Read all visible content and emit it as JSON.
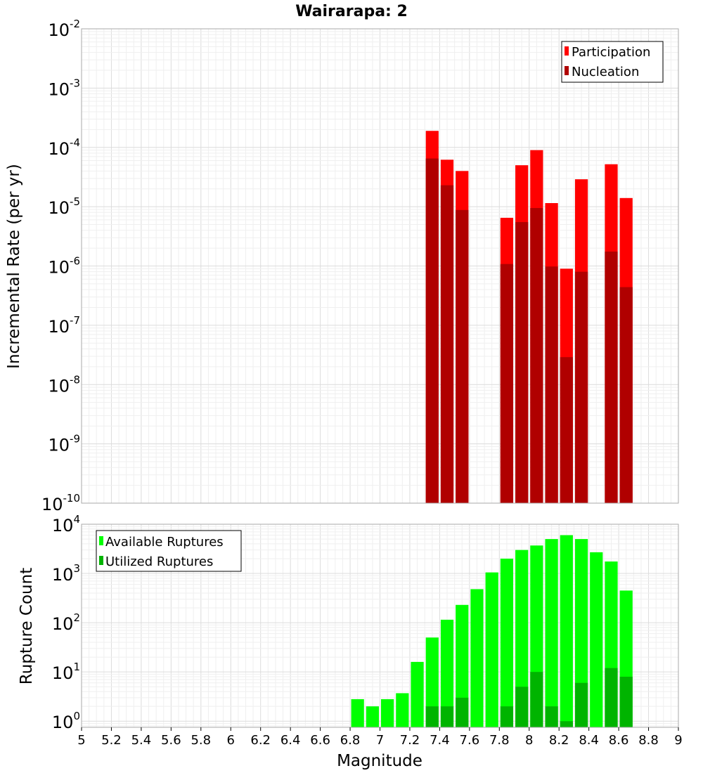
{
  "chart_data": [
    {
      "id": "rates",
      "type": "bar",
      "title": "Wairarapa: 2",
      "xlabel": "Magnitude",
      "ylabel": "Incremental Rate (per yr)",
      "yscale": "log",
      "xlim": [
        5,
        9
      ],
      "ylim": [
        1e-10,
        0.01
      ],
      "ytick_exponents": [
        -10,
        -9,
        -8,
        -7,
        -6,
        -5,
        -4,
        -3,
        -2
      ],
      "bin_width": 0.1,
      "legend": {
        "position": "top-right",
        "entries": [
          "Participation",
          "Nucleation"
        ]
      },
      "series": [
        {
          "name": "Participation",
          "color": "#ff0000",
          "points": [
            [
              7.35,
              0.00019
            ],
            [
              7.45,
              6.2e-05
            ],
            [
              7.55,
              4e-05
            ],
            [
              7.85,
              6.5e-06
            ],
            [
              7.95,
              5e-05
            ],
            [
              8.05,
              9e-05
            ],
            [
              8.15,
              1.15e-05
            ],
            [
              8.25,
              9e-07
            ],
            [
              8.35,
              2.9e-05
            ],
            [
              8.55,
              5.2e-05
            ],
            [
              8.65,
              1.4e-05
            ]
          ]
        },
        {
          "name": "Nucleation",
          "color": "#b00000",
          "points": [
            [
              7.35,
              6.5e-05
            ],
            [
              7.45,
              2.3e-05
            ],
            [
              7.55,
              8.8e-06
            ],
            [
              7.85,
              1.08e-06
            ],
            [
              7.95,
              5.5e-06
            ],
            [
              8.05,
              9.5e-06
            ],
            [
              8.15,
              9.8e-07
            ],
            [
              8.25,
              2.9e-08
            ],
            [
              8.35,
              8e-07
            ],
            [
              8.55,
              1.75e-06
            ],
            [
              8.65,
              4.4e-07
            ]
          ]
        }
      ]
    },
    {
      "id": "counts",
      "type": "bar",
      "xlabel": "Magnitude",
      "ylabel": "Rupture Count",
      "yscale": "log",
      "xlim": [
        5,
        9
      ],
      "ylim": [
        0.75,
        10000
      ],
      "ytick_exponents": [
        0,
        1,
        2,
        3,
        4
      ],
      "xticks": [
        "5",
        "5.2",
        "5.4",
        "5.6",
        "5.8",
        "6",
        "6.2",
        "6.4",
        "6.6",
        "6.8",
        "7",
        "7.2",
        "7.4",
        "7.6",
        "7.8",
        "8",
        "8.2",
        "8.4",
        "8.6",
        "8.8",
        "9"
      ],
      "bin_width": 0.1,
      "legend": {
        "position": "top-left",
        "entries": [
          "Available Ruptures",
          "Utilized Ruptures"
        ]
      },
      "series": [
        {
          "name": "Available Ruptures",
          "color": "#00ff00",
          "points": [
            [
              6.85,
              2.8
            ],
            [
              6.95,
              2.0
            ],
            [
              7.05,
              2.8
            ],
            [
              7.15,
              3.7
            ],
            [
              7.25,
              16
            ],
            [
              7.35,
              50
            ],
            [
              7.45,
              115
            ],
            [
              7.55,
              230
            ],
            [
              7.65,
              480
            ],
            [
              7.75,
              1050
            ],
            [
              7.85,
              2000
            ],
            [
              7.95,
              3000
            ],
            [
              8.05,
              3700
            ],
            [
              8.15,
              5000
            ],
            [
              8.25,
              6000
            ],
            [
              8.35,
              5000
            ],
            [
              8.45,
              2700
            ],
            [
              8.55,
              1750
            ],
            [
              8.65,
              450
            ]
          ]
        },
        {
          "name": "Utilized Ruptures",
          "color": "#00b400",
          "points": [
            [
              7.35,
              2
            ],
            [
              7.45,
              2
            ],
            [
              7.55,
              3
            ],
            [
              7.85,
              2
            ],
            [
              7.95,
              5
            ],
            [
              8.05,
              10
            ],
            [
              8.15,
              2
            ],
            [
              8.25,
              1
            ],
            [
              8.35,
              6
            ],
            [
              8.55,
              12
            ],
            [
              8.65,
              8
            ]
          ]
        }
      ]
    }
  ]
}
